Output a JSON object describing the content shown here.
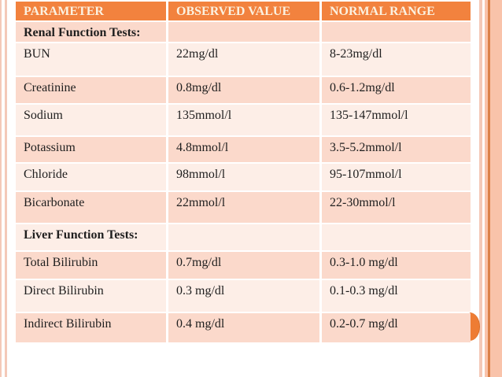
{
  "table": {
    "columns": [
      "PARAMETER",
      "OBSERVED VALUE",
      "NORMAL RANGE"
    ],
    "rows": [
      {
        "type": "section",
        "parameter": "Renal Function Tests:",
        "observed": "",
        "range": ""
      },
      {
        "type": "data",
        "parameter": "BUN",
        "observed": "22mg/dl",
        "range": "8-23mg/dl"
      },
      {
        "type": "data",
        "parameter": "Creatinine",
        "observed": "0.8mg/dl",
        "range": "0.6-1.2mg/dl"
      },
      {
        "type": "data",
        "parameter": "Sodium",
        "observed": "135mmol/l",
        "range": "135-147mmol/l"
      },
      {
        "type": "data",
        "parameter": "Potassium",
        "observed": "4.8mmol/l",
        "range": "3.5-5.2mmol/l"
      },
      {
        "type": "data",
        "parameter": "Chloride",
        "observed": "98mmol/l",
        "range": "95-107mmol/l"
      },
      {
        "type": "data",
        "parameter": "Bicarbonate",
        "observed": "22mmol/l",
        "range": "22-30mmol/l"
      },
      {
        "type": "section",
        "parameter": "Liver Function Tests:",
        "observed": "",
        "range": ""
      },
      {
        "type": "data",
        "parameter": "Total Bilirubin",
        "observed": "0.7mg/dl",
        "range": "0.3-1.0 mg/dl"
      },
      {
        "type": "data",
        "parameter": "Direct Bilirubin",
        "observed": "0.3 mg/dl",
        "range": "0.1-0.3 mg/dl"
      },
      {
        "type": "data",
        "parameter": "Indirect Bilirubin",
        "observed": "0.4 mg/dl",
        "range": "0.2-0.7 mg/dl"
      }
    ]
  },
  "colors": {
    "header_background": "#f2823e",
    "header_text": "#fbf1e0",
    "row_band_dark": "#fbd9cb",
    "row_band_light": "#fdeee7",
    "body_text": "#1f1f1f",
    "border_line_pink": "#f4c9b8",
    "side_stripe_salmon": "#f9c3aa",
    "side_stripe_dark_line": "#db8149",
    "semicircle_accent": "#ee7c34"
  }
}
